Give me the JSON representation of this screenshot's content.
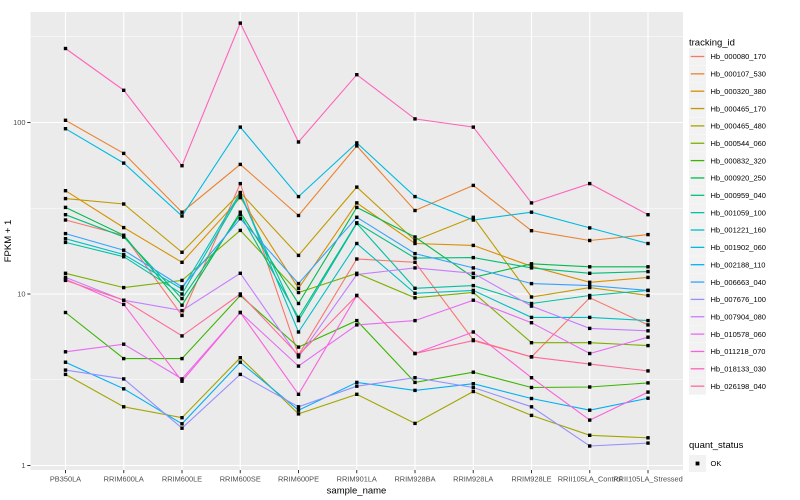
{
  "chart_data": {
    "type": "line",
    "title": "",
    "xlabel": "sample_name",
    "ylabel": "FPKM + 1",
    "yscale": "log10",
    "ylim": [
      1,
      450
    ],
    "y_tick_labels": [
      "1",
      "10",
      "100"
    ],
    "y_major_gridlines": [
      1,
      10,
      100
    ],
    "y_minor_gridlines": [
      3.1623,
      31.623,
      316.23
    ],
    "grid": "on",
    "legend_position": "right",
    "point_marker": "small-black-square",
    "x_categories": [
      "PB350LA",
      "RRIM600LA",
      "RRIM600LE",
      "RRIM600SE",
      "RRIM600PE",
      "RRIM901LA",
      "RRIM928BA",
      "RRIM928LA",
      "RRIM928LE",
      "RRII105LA_Control",
      "RRII105LA_Stressed"
    ],
    "legend": {
      "tracking_title": "tracking_id",
      "quant_title": "quant_status",
      "quant_ok_label": "OK"
    },
    "series": [
      {
        "name": "Hb_000080_170",
        "color": "#F8766D",
        "values": [
          27,
          22,
          7.5,
          44,
          4.4,
          16,
          15.3,
          5.4,
          4.3,
          9.5,
          6.6
        ]
      },
      {
        "name": "Hb_000107_530",
        "color": "#EA8331",
        "values": [
          103,
          66,
          30,
          57,
          28.7,
          73,
          30.7,
          43,
          23.4,
          20.5,
          22.2
        ]
      },
      {
        "name": "Hb_000320_380",
        "color": "#D89000",
        "values": [
          40,
          24.4,
          15.3,
          36.5,
          10.8,
          34,
          19.7,
          19.2,
          14.5,
          11.7,
          12.5
        ]
      },
      {
        "name": "Hb_000465_170",
        "color": "#C09B00",
        "values": [
          36,
          33.5,
          17.5,
          39,
          16.8,
          42,
          20.5,
          28,
          9.6,
          10.9,
          9.8
        ]
      },
      {
        "name": "Hb_000465_480",
        "color": "#A3A500",
        "values": [
          3.4,
          2.2,
          1.9,
          4.25,
          2.0,
          2.6,
          1.76,
          2.7,
          1.96,
          1.5,
          1.45
        ]
      },
      {
        "name": "Hb_000544_060",
        "color": "#7CAE00",
        "values": [
          13.2,
          10.9,
          12,
          23.5,
          10.2,
          13.2,
          9.5,
          10.2,
          5.2,
          5.2,
          5.0
        ]
      },
      {
        "name": "Hb_000832_320",
        "color": "#39B600",
        "values": [
          7.8,
          4.2,
          4.2,
          9.8,
          4.9,
          7.0,
          3.05,
          3.5,
          2.85,
          2.87,
          3.03
        ]
      },
      {
        "name": "Hb_000920_250",
        "color": "#00BB4E",
        "values": [
          32,
          22,
          8.6,
          30,
          8.8,
          32,
          21.5,
          12.5,
          15,
          14.4,
          14.4
        ]
      },
      {
        "name": "Hb_000959_040",
        "color": "#00BF7D",
        "values": [
          29,
          21.5,
          9.4,
          29,
          7.3,
          26,
          16.2,
          16.3,
          14.2,
          13.2,
          13.5
        ]
      },
      {
        "name": "Hb_001059_100",
        "color": "#00C1A3",
        "values": [
          20,
          16.5,
          10,
          38,
          7.0,
          25.8,
          10.8,
          11.2,
          8.8,
          9.8,
          10.5
        ]
      },
      {
        "name": "Hb_001221_160",
        "color": "#00BFC4",
        "values": [
          21,
          17,
          10.7,
          39,
          6.0,
          19.7,
          10.1,
          10.5,
          7.3,
          7.3,
          7.0
        ]
      },
      {
        "name": "Hb_001902_060",
        "color": "#00BAE0",
        "values": [
          92,
          58,
          28.5,
          94,
          37,
          76,
          37,
          27,
          30,
          24.3,
          19.7
        ]
      },
      {
        "name": "Hb_002188_110",
        "color": "#00B0F6",
        "values": [
          4.0,
          2.8,
          1.75,
          4.0,
          2.1,
          3.05,
          2.74,
          3.0,
          2.46,
          2.1,
          2.47
        ]
      },
      {
        "name": "Hb_006663_040",
        "color": "#35A2FF",
        "values": [
          22.5,
          18,
          11,
          27.5,
          11.5,
          28,
          17.2,
          14.2,
          11.5,
          11.2,
          10.5
        ]
      },
      {
        "name": "Hb_007676_100",
        "color": "#9590FF",
        "values": [
          3.6,
          3.2,
          1.65,
          3.4,
          2.2,
          2.9,
          3.25,
          2.85,
          2.2,
          1.3,
          1.35
        ]
      },
      {
        "name": "Hb_007904_080",
        "color": "#C77CFF",
        "values": [
          12.5,
          9.2,
          8.0,
          13.2,
          4.3,
          13.0,
          14.2,
          13.2,
          8.5,
          6.3,
          6.1
        ]
      },
      {
        "name": "Hb_010578_060",
        "color": "#E76BF3",
        "values": [
          4.6,
          5.1,
          3.2,
          7.8,
          3.8,
          6.6,
          7.0,
          9.2,
          6.8,
          4.5,
          5.6
        ]
      },
      {
        "name": "Hb_011218_070",
        "color": "#FA62DB",
        "values": [
          12.2,
          8.7,
          3.1,
          7.8,
          2.6,
          9.8,
          4.5,
          6.0,
          3.25,
          1.84,
          2.68
        ]
      },
      {
        "name": "Hb_018133_030",
        "color": "#FF62BC",
        "values": [
          270,
          154,
          56,
          380,
          77,
          190,
          105,
          94,
          34,
          44,
          29
        ]
      },
      {
        "name": "Hb_026198_040",
        "color": "#FF6A98",
        "values": [
          12.0,
          9.2,
          5.7,
          10.0,
          4.4,
          9.8,
          4.5,
          5.35,
          4.3,
          3.9,
          3.56
        ]
      }
    ],
    "colors": {
      "panel_background": "#EBEBEB",
      "gridline": "#FFFFFF",
      "axis_text": "#4D4D4D",
      "tick_mark": "#333333",
      "title_text": "#000000",
      "legend_key_background": "#F2F2F2",
      "point": "#000000"
    }
  }
}
